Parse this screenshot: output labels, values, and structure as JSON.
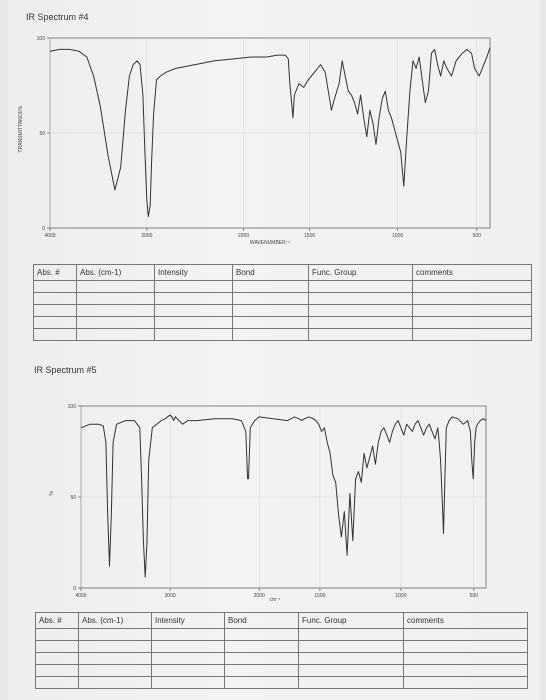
{
  "spectrum4": {
    "title": "IR Spectrum #4",
    "ylabel": "TRANSMITTANCE%",
    "xlabel": "WAVENUMBER⁻¹",
    "yticks": [
      "100",
      "50",
      "0"
    ],
    "xticks": [
      "4000",
      "3000",
      "2000",
      "1500",
      "1000",
      "500"
    ]
  },
  "table4": {
    "headers": [
      "Abs. #",
      "Abs. (cm-1)",
      "Intensity",
      "Bond",
      "Func. Group",
      "comments"
    ]
  },
  "spectrum5": {
    "title": "IR Spectrum #5",
    "ylabel": "%",
    "xlabel": "cm⁻¹",
    "yticks": [
      "100",
      "50",
      "0"
    ],
    "xticks": [
      "4000",
      "3000",
      "2000",
      "1500",
      "1000",
      "500"
    ]
  },
  "table5": {
    "headers": [
      "Abs. #",
      "Abs. (cm-1)",
      "Intensity",
      "Bond",
      "Func. Group",
      "comments"
    ]
  },
  "chart_data": [
    {
      "type": "line",
      "title": "IR Spectrum #4",
      "ylabel": "TRANSMITTANCE%",
      "xlabel": "WAVENUMBER⁻¹",
      "x_axis": "wavenumber (cm-1), decreasing",
      "xlim": [
        4000,
        400
      ],
      "ylim": [
        0,
        100
      ],
      "grid": true,
      "series": [
        {
          "values_x": [
            4000,
            3900,
            3800,
            3700,
            3620,
            3550,
            3480,
            3400,
            3330,
            3270,
            3220,
            3180,
            3140,
            3100,
            3070,
            3040,
            3020,
            3000,
            2985,
            2965,
            2950,
            2930,
            2900,
            2860,
            2800,
            2700,
            2500,
            2300,
            2100,
            1950,
            1850,
            1780,
            1730,
            1710,
            1700,
            1690,
            1680,
            1670,
            1640,
            1610,
            1580,
            1560,
            1520,
            1500,
            1470,
            1450,
            1430,
            1410,
            1380,
            1360,
            1340,
            1320,
            1300,
            1280,
            1260,
            1240,
            1220,
            1200,
            1180,
            1160,
            1140,
            1120,
            1100,
            1080,
            1060,
            1040,
            1020,
            1000,
            980,
            960,
            940,
            920,
            900,
            880,
            860,
            840,
            820,
            800,
            780,
            760,
            740,
            720,
            700,
            680,
            650,
            620,
            600,
            580,
            550,
            520,
            500,
            470,
            440,
            420,
            400
          ],
          "values_y": [
            93,
            94,
            94,
            93,
            90,
            80,
            64,
            38,
            20,
            32,
            62,
            80,
            86,
            88,
            86,
            70,
            40,
            15,
            6,
            12,
            35,
            60,
            78,
            80,
            82,
            84,
            86,
            88,
            89,
            90,
            90,
            91,
            91,
            89,
            76,
            68,
            58,
            70,
            76,
            74,
            78,
            80,
            84,
            86,
            82,
            72,
            62,
            68,
            76,
            88,
            80,
            72,
            70,
            66,
            60,
            70,
            58,
            48,
            62,
            55,
            44,
            58,
            68,
            72,
            62,
            58,
            52,
            46,
            40,
            22,
            48,
            72,
            88,
            84,
            90,
            78,
            66,
            72,
            92,
            94,
            86,
            80,
            88,
            84,
            80,
            88,
            90,
            92,
            94,
            92,
            84,
            80,
            86,
            90,
            95
          ]
        }
      ]
    },
    {
      "type": "line",
      "title": "IR Spectrum #5",
      "ylabel": "%",
      "xlabel": "cm⁻¹",
      "x_axis": "wavenumber (cm-1), decreasing",
      "xlim": [
        4000,
        400
      ],
      "ylim": [
        0,
        100
      ],
      "grid": true,
      "series": [
        {
          "values_x": [
            4000,
            3900,
            3800,
            3750,
            3720,
            3700,
            3680,
            3660,
            3640,
            3600,
            3500,
            3400,
            3340,
            3320,
            3300,
            3280,
            3260,
            3240,
            3200,
            3150,
            3100,
            3050,
            3030,
            3000,
            2980,
            2960,
            2940,
            2920,
            2900,
            2880,
            2860,
            2800,
            2700,
            2500,
            2300,
            2200,
            2150,
            2130,
            2120,
            2100,
            2050,
            2000,
            1900,
            1800,
            1750,
            1720,
            1700,
            1680,
            1650,
            1620,
            1600,
            1580,
            1560,
            1540,
            1520,
            1500,
            1480,
            1460,
            1440,
            1420,
            1400,
            1380,
            1360,
            1340,
            1320,
            1300,
            1280,
            1260,
            1240,
            1220,
            1200,
            1180,
            1160,
            1140,
            1120,
            1100,
            1080,
            1060,
            1040,
            1020,
            1000,
            980,
            960,
            940,
            920,
            900,
            880,
            860,
            840,
            820,
            800,
            780,
            760,
            740,
            730,
            720,
            710,
            700,
            690,
            680,
            660,
            640,
            600,
            560,
            530,
            510,
            500,
            490,
            480,
            470,
            460,
            440,
            420,
            400
          ],
          "values_y": [
            88,
            90,
            90,
            89,
            80,
            40,
            12,
            40,
            80,
            90,
            92,
            92,
            88,
            60,
            26,
            6,
            24,
            70,
            88,
            90,
            92,
            93,
            94,
            95,
            94,
            92,
            94,
            93,
            92,
            91,
            90,
            92,
            92,
            93,
            93,
            92,
            86,
            60,
            60,
            88,
            92,
            94,
            93,
            92,
            94,
            93,
            92,
            93,
            94,
            93,
            92,
            90,
            86,
            88,
            80,
            74,
            62,
            58,
            40,
            28,
            42,
            18,
            52,
            26,
            60,
            64,
            58,
            74,
            66,
            72,
            78,
            68,
            80,
            86,
            88,
            84,
            80,
            86,
            90,
            92,
            88,
            84,
            90,
            88,
            86,
            90,
            92,
            88,
            84,
            88,
            90,
            86,
            82,
            88,
            80,
            70,
            50,
            30,
            60,
            88,
            92,
            94,
            93,
            90,
            92,
            86,
            70,
            60,
            80,
            88,
            90,
            92,
            93,
            92
          ]
        }
      ]
    }
  ]
}
